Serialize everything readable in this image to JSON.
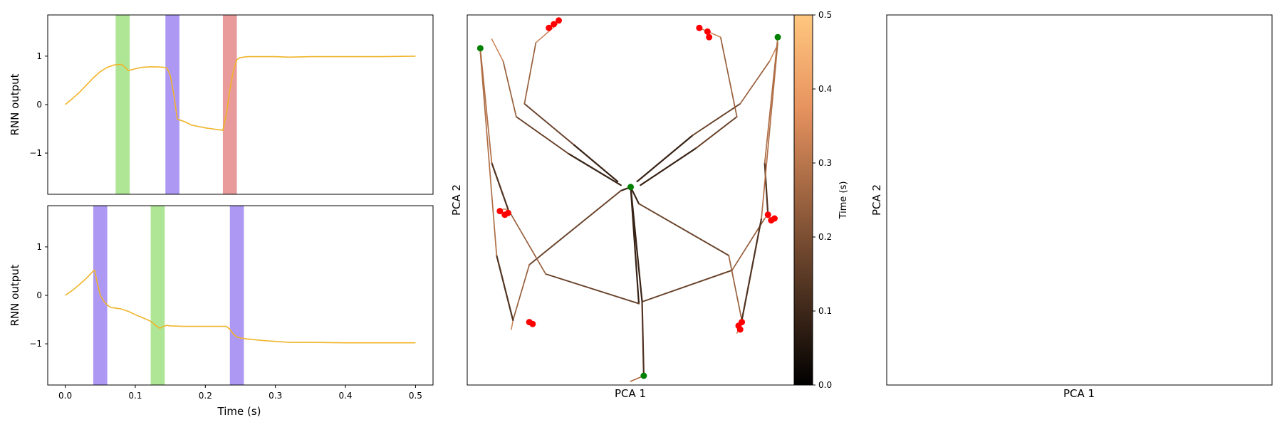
{
  "chart_data": [
    {
      "type": "line",
      "panel": "top-left",
      "ylabel": "RNN output",
      "xlabel": "",
      "xlim": [
        -0.025,
        0.525
      ],
      "ylim": [
        -1.85,
        1.85
      ],
      "yticks": [
        1,
        0,
        -1
      ],
      "ytick_labels": [
        "1",
        "0",
        "−1"
      ],
      "series": [
        {
          "color": "#f0b429",
          "x": [
            0.0,
            0.01,
            0.02,
            0.03,
            0.04,
            0.05,
            0.06,
            0.07,
            0.08,
            0.085,
            0.09,
            0.1,
            0.11,
            0.12,
            0.13,
            0.14,
            0.145,
            0.15,
            0.155,
            0.16,
            0.17,
            0.18,
            0.2,
            0.22,
            0.225,
            0.23,
            0.235,
            0.24,
            0.245,
            0.25,
            0.26,
            0.28,
            0.3,
            0.32,
            0.35,
            0.4,
            0.45,
            0.5
          ],
          "y": [
            0.0,
            0.12,
            0.25,
            0.4,
            0.55,
            0.68,
            0.77,
            0.82,
            0.83,
            0.78,
            0.7,
            0.74,
            0.77,
            0.78,
            0.78,
            0.77,
            0.76,
            0.6,
            0.2,
            -0.3,
            -0.35,
            -0.42,
            -0.48,
            -0.52,
            -0.53,
            -0.2,
            0.3,
            0.7,
            0.93,
            0.97,
            0.99,
            0.99,
            0.99,
            0.98,
            0.99,
            0.99,
            0.99,
            1.0
          ]
        }
      ],
      "spans": [
        {
          "x0": 0.072,
          "x1": 0.092,
          "color": "#8bdc6a"
        },
        {
          "x0": 0.143,
          "x1": 0.163,
          "color": "#8a6cf0"
        },
        {
          "x0": 0.225,
          "x1": 0.245,
          "color": "#e07070"
        }
      ]
    },
    {
      "type": "line",
      "panel": "bottom-left",
      "ylabel": "RNN output",
      "xlabel": "Time (s)",
      "xlim": [
        -0.025,
        0.525
      ],
      "ylim": [
        -1.85,
        1.85
      ],
      "xticks": [
        0.0,
        0.1,
        0.2,
        0.3,
        0.4,
        0.5
      ],
      "xtick_labels": [
        "0.0",
        "0.1",
        "0.2",
        "0.3",
        "0.4",
        "0.5"
      ],
      "yticks": [
        1,
        0,
        -1
      ],
      "ytick_labels": [
        "1",
        "0",
        "−1"
      ],
      "series": [
        {
          "color": "#f0b429",
          "x": [
            0.0,
            0.01,
            0.02,
            0.03,
            0.04,
            0.042,
            0.045,
            0.05,
            0.055,
            0.06,
            0.065,
            0.07,
            0.08,
            0.09,
            0.1,
            0.11,
            0.12,
            0.125,
            0.13,
            0.135,
            0.14,
            0.145,
            0.15,
            0.17,
            0.2,
            0.23,
            0.235,
            0.24,
            0.245,
            0.25,
            0.26,
            0.28,
            0.3,
            0.32,
            0.35,
            0.4,
            0.45,
            0.5
          ],
          "y": [
            0.0,
            0.1,
            0.22,
            0.35,
            0.5,
            0.52,
            0.3,
            0.0,
            -0.12,
            -0.2,
            -0.25,
            -0.26,
            -0.28,
            -0.33,
            -0.4,
            -0.46,
            -0.52,
            -0.57,
            -0.63,
            -0.68,
            -0.64,
            -0.62,
            -0.63,
            -0.64,
            -0.64,
            -0.64,
            -0.7,
            -0.8,
            -0.86,
            -0.88,
            -0.9,
            -0.93,
            -0.95,
            -0.97,
            -0.97,
            -0.98,
            -0.98,
            -0.98
          ]
        }
      ],
      "spans": [
        {
          "x0": 0.04,
          "x1": 0.06,
          "color": "#8a6cf0"
        },
        {
          "x0": 0.122,
          "x1": 0.142,
          "color": "#8bdc6a"
        },
        {
          "x0": 0.235,
          "x1": 0.255,
          "color": "#8a6cf0"
        }
      ]
    },
    {
      "type": "line",
      "panel": "middle",
      "xlabel": "PCA 1",
      "ylabel": "PCA 2",
      "colormap": "copper",
      "colorbar": {
        "label": "Time (s)",
        "range": [
          0.0,
          0.5
        ],
        "ticks": [
          0.0,
          0.1,
          0.2,
          0.3,
          0.4,
          0.5
        ],
        "tick_labels": [
          "0.0",
          "0.1",
          "0.2",
          "0.3",
          "0.4",
          "0.5"
        ]
      },
      "xlim": [
        -1.0,
        1.0
      ],
      "ylim": [
        -1.0,
        1.0
      ],
      "trajectories": [
        {
          "x": [
            -0.08,
            -0.35,
            -0.65,
            -0.58,
            -0.45
          ],
          "y": [
            0.1,
            0.3,
            0.52,
            0.85,
            0.95
          ]
        },
        {
          "x": [
            -0.06,
            -0.38,
            -0.7,
            -0.78,
            -0.85
          ],
          "y": [
            0.08,
            0.25,
            0.45,
            0.75,
            0.87
          ]
        },
        {
          "x": [
            0.04,
            0.38,
            0.67,
            0.85,
            0.9
          ],
          "y": [
            0.1,
            0.35,
            0.52,
            0.75,
            0.84
          ]
        },
        {
          "x": [
            0.06,
            0.4,
            0.65,
            0.55,
            0.42
          ],
          "y": [
            0.08,
            0.28,
            0.45,
            0.88,
            0.93
          ]
        },
        {
          "x": [
            0.0,
            -0.06,
            -0.62,
            -0.72,
            -0.73
          ],
          "y": [
            0.07,
            0.05,
            -0.35,
            -0.65,
            -0.7
          ]
        },
        {
          "x": [
            0.0,
            0.05,
            0.6,
            0.68,
            0.65
          ],
          "y": [
            0.07,
            -0.02,
            -0.3,
            -0.65,
            -0.72
          ]
        },
        {
          "x": [
            0.0,
            0.05,
            -0.52,
            -0.75,
            -0.78
          ],
          "y": [
            0.07,
            -0.56,
            -0.4,
            -0.05,
            -0.05
          ]
        },
        {
          "x": [
            0.0,
            0.07,
            0.62,
            0.82,
            0.84
          ],
          "y": [
            0.07,
            -0.55,
            -0.38,
            -0.1,
            -0.08
          ]
        },
        {
          "x": [
            -0.75,
            -0.85,
            -0.92
          ],
          "y": [
            -0.05,
            0.2,
            0.82
          ]
        },
        {
          "x": [
            0.84,
            0.82,
            0.9
          ],
          "y": [
            -0.08,
            0.2,
            0.88
          ]
        },
        {
          "x": [
            0.07,
            0.08,
            0.0
          ],
          "y": [
            -0.55,
            -0.95,
            -0.98
          ]
        },
        {
          "x": [
            -0.72,
            -0.82,
            -0.92
          ],
          "y": [
            -0.65,
            -0.3,
            0.8
          ]
        },
        {
          "x": [
            0.68,
            0.8,
            0.9
          ],
          "y": [
            -0.65,
            -0.1,
            0.85
          ]
        }
      ],
      "start_points": [
        {
          "x": 0.0,
          "y": 0.07,
          "color": "#008000"
        },
        {
          "x": -0.92,
          "y": 0.82,
          "color": "#008000"
        },
        {
          "x": 0.9,
          "y": 0.88,
          "color": "#008000"
        },
        {
          "x": 0.08,
          "y": -0.95,
          "color": "#008000"
        }
      ],
      "end_points": [
        {
          "x": -0.5,
          "y": 0.93,
          "color": "#ff0000"
        },
        {
          "x": -0.47,
          "y": 0.95,
          "color": "#ff0000"
        },
        {
          "x": -0.44,
          "y": 0.97,
          "color": "#ff0000"
        },
        {
          "x": 0.42,
          "y": 0.93,
          "color": "#ff0000"
        },
        {
          "x": 0.47,
          "y": 0.91,
          "color": "#ff0000"
        },
        {
          "x": 0.48,
          "y": 0.88,
          "color": "#ff0000"
        },
        {
          "x": -0.8,
          "y": -0.06,
          "color": "#ff0000"
        },
        {
          "x": -0.77,
          "y": -0.08,
          "color": "#ff0000"
        },
        {
          "x": -0.75,
          "y": -0.07,
          "color": "#ff0000"
        },
        {
          "x": 0.84,
          "y": -0.08,
          "color": "#ff0000"
        },
        {
          "x": 0.86,
          "y": -0.11,
          "color": "#ff0000"
        },
        {
          "x": 0.88,
          "y": -0.1,
          "color": "#ff0000"
        },
        {
          "x": -0.62,
          "y": -0.66,
          "color": "#ff0000"
        },
        {
          "x": -0.6,
          "y": -0.67,
          "color": "#ff0000"
        },
        {
          "x": 0.66,
          "y": -0.68,
          "color": "#ff0000"
        },
        {
          "x": 0.67,
          "y": -0.7,
          "color": "#ff0000"
        },
        {
          "x": 0.68,
          "y": -0.66,
          "color": "#ff0000"
        }
      ]
    },
    {
      "type": "line",
      "panel": "right",
      "xlabel": "PCA 1",
      "ylabel": "PCA 2",
      "series": []
    }
  ]
}
